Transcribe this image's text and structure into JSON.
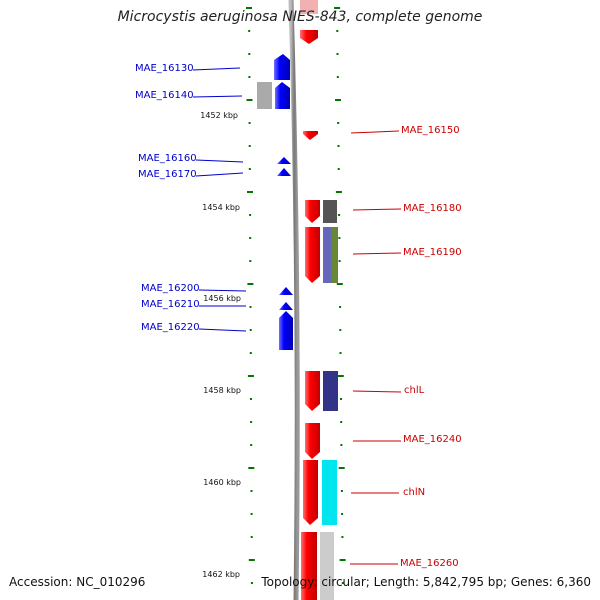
{
  "title": "Microcystis aeruginosa NIES-843, complete genome",
  "accession": "Accession: NC_010296",
  "topology": "Topology: circular; Length: 5,842,795 bp; Genes: 6,360",
  "kbp_ticks": [
    "1452 kbp",
    "1454 kbp",
    "1456 kbp",
    "1458 kbp",
    "1460 kbp",
    "1462 kbp"
  ],
  "genes_left": [
    "MAE_16130",
    "MAE_16140",
    "MAE_16160",
    "MAE_16170",
    "MAE_16200",
    "MAE_16210",
    "MAE_16220"
  ],
  "genes_right": [
    "MAE_16150",
    "MAE_16180",
    "MAE_16190",
    "chlL",
    "MAE_16240",
    "chlN",
    "MAE_16260"
  ],
  "colors": {
    "forward_strand": "#0000ff",
    "reverse_strand": "#ff0000",
    "backbone": "#888888",
    "tick": "#007700",
    "cog_gray": "#aaaaaa",
    "cog_dark": "#555555",
    "cog_purple": "#6666bb",
    "cog_olive": "#668833",
    "cog_indigo": "#333388",
    "cog_cyan": "#00e5ee",
    "cog_silver": "#cccccc"
  }
}
